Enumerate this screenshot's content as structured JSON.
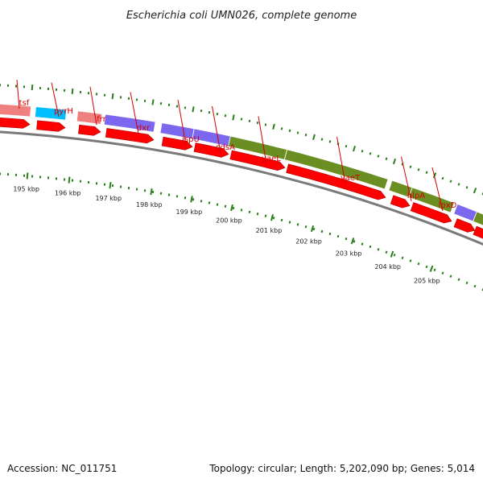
{
  "title": "Escherichia coli UMN026, complete genome",
  "accession": "Accession: NC_011751",
  "summary": "Topology: circular; Length: 5,202,090 bp; Genes: 5,014",
  "colors": {
    "backbone": "#777777",
    "cds": "#ff0000",
    "label": "#d40000",
    "tick": "#2a7f1a"
  },
  "genes": [
    {
      "name": "tsf",
      "cog_color": "#f08080"
    },
    {
      "name": "pyrH",
      "cog_color": "#00bfff"
    },
    {
      "name": "frr",
      "cog_color": "#f08080"
    },
    {
      "name": "dxr",
      "cog_color": "#7b68ee"
    },
    {
      "name": "ispU",
      "cog_color": "#7b68ee"
    },
    {
      "name": "cdsA",
      "cog_color": "#7b68ee"
    },
    {
      "name": "yaeL",
      "cog_color": "#6b8e23"
    },
    {
      "name": "yaeT",
      "cog_color": "#6b8e23"
    },
    {
      "name": "hlpA",
      "cog_color": "#6b8e23"
    },
    {
      "name": "lpxD",
      "cog_color": "#6b8e23"
    }
  ],
  "kbp_labels": [
    "195 kbp",
    "196 kbp",
    "197 kbp",
    "198 kbp",
    "199 kbp",
    "200 kbp",
    "201 kbp",
    "202 kbp",
    "203 kbp",
    "204 kbp",
    "205 kbp"
  ]
}
